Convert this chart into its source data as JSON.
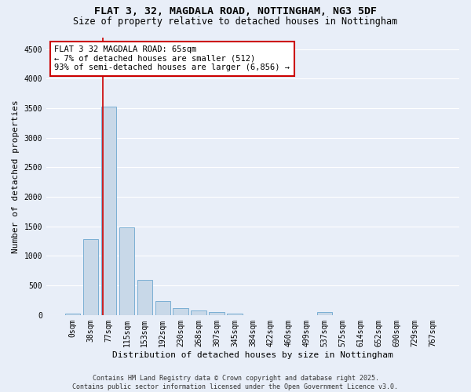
{
  "title_line1": "FLAT 3, 32, MAGDALA ROAD, NOTTINGHAM, NG3 5DF",
  "title_line2": "Size of property relative to detached houses in Nottingham",
  "xlabel": "Distribution of detached houses by size in Nottingham",
  "ylabel": "Number of detached properties",
  "bin_labels": [
    "0sqm",
    "38sqm",
    "77sqm",
    "115sqm",
    "153sqm",
    "192sqm",
    "230sqm",
    "268sqm",
    "307sqm",
    "345sqm",
    "384sqm",
    "422sqm",
    "460sqm",
    "499sqm",
    "537sqm",
    "575sqm",
    "614sqm",
    "652sqm",
    "690sqm",
    "729sqm",
    "767sqm"
  ],
  "bar_values": [
    30,
    1280,
    3530,
    1490,
    590,
    240,
    115,
    75,
    45,
    20,
    0,
    0,
    0,
    0,
    50,
    0,
    0,
    0,
    0,
    0,
    0
  ],
  "bar_color": "#c8d8e8",
  "bar_edge_color": "#7bafd4",
  "annotation_text": "FLAT 3 32 MAGDALA ROAD: 65sqm\n← 7% of detached houses are smaller (512)\n93% of semi-detached houses are larger (6,856) →",
  "annotation_box_color": "#ffffff",
  "annotation_box_edge_color": "#cc0000",
  "vline_color": "#cc0000",
  "ylim": [
    0,
    4700
  ],
  "yticks": [
    0,
    500,
    1000,
    1500,
    2000,
    2500,
    3000,
    3500,
    4000,
    4500
  ],
  "bg_color": "#e8eef8",
  "plot_bg_color": "#e8eef8",
  "grid_color": "#ffffff",
  "footer_text": "Contains HM Land Registry data © Crown copyright and database right 2025.\nContains public sector information licensed under the Open Government Licence v3.0.",
  "title_fontsize": 9.5,
  "subtitle_fontsize": 8.5,
  "axis_label_fontsize": 8,
  "tick_fontsize": 7,
  "annotation_fontsize": 7.5,
  "footer_fontsize": 6
}
